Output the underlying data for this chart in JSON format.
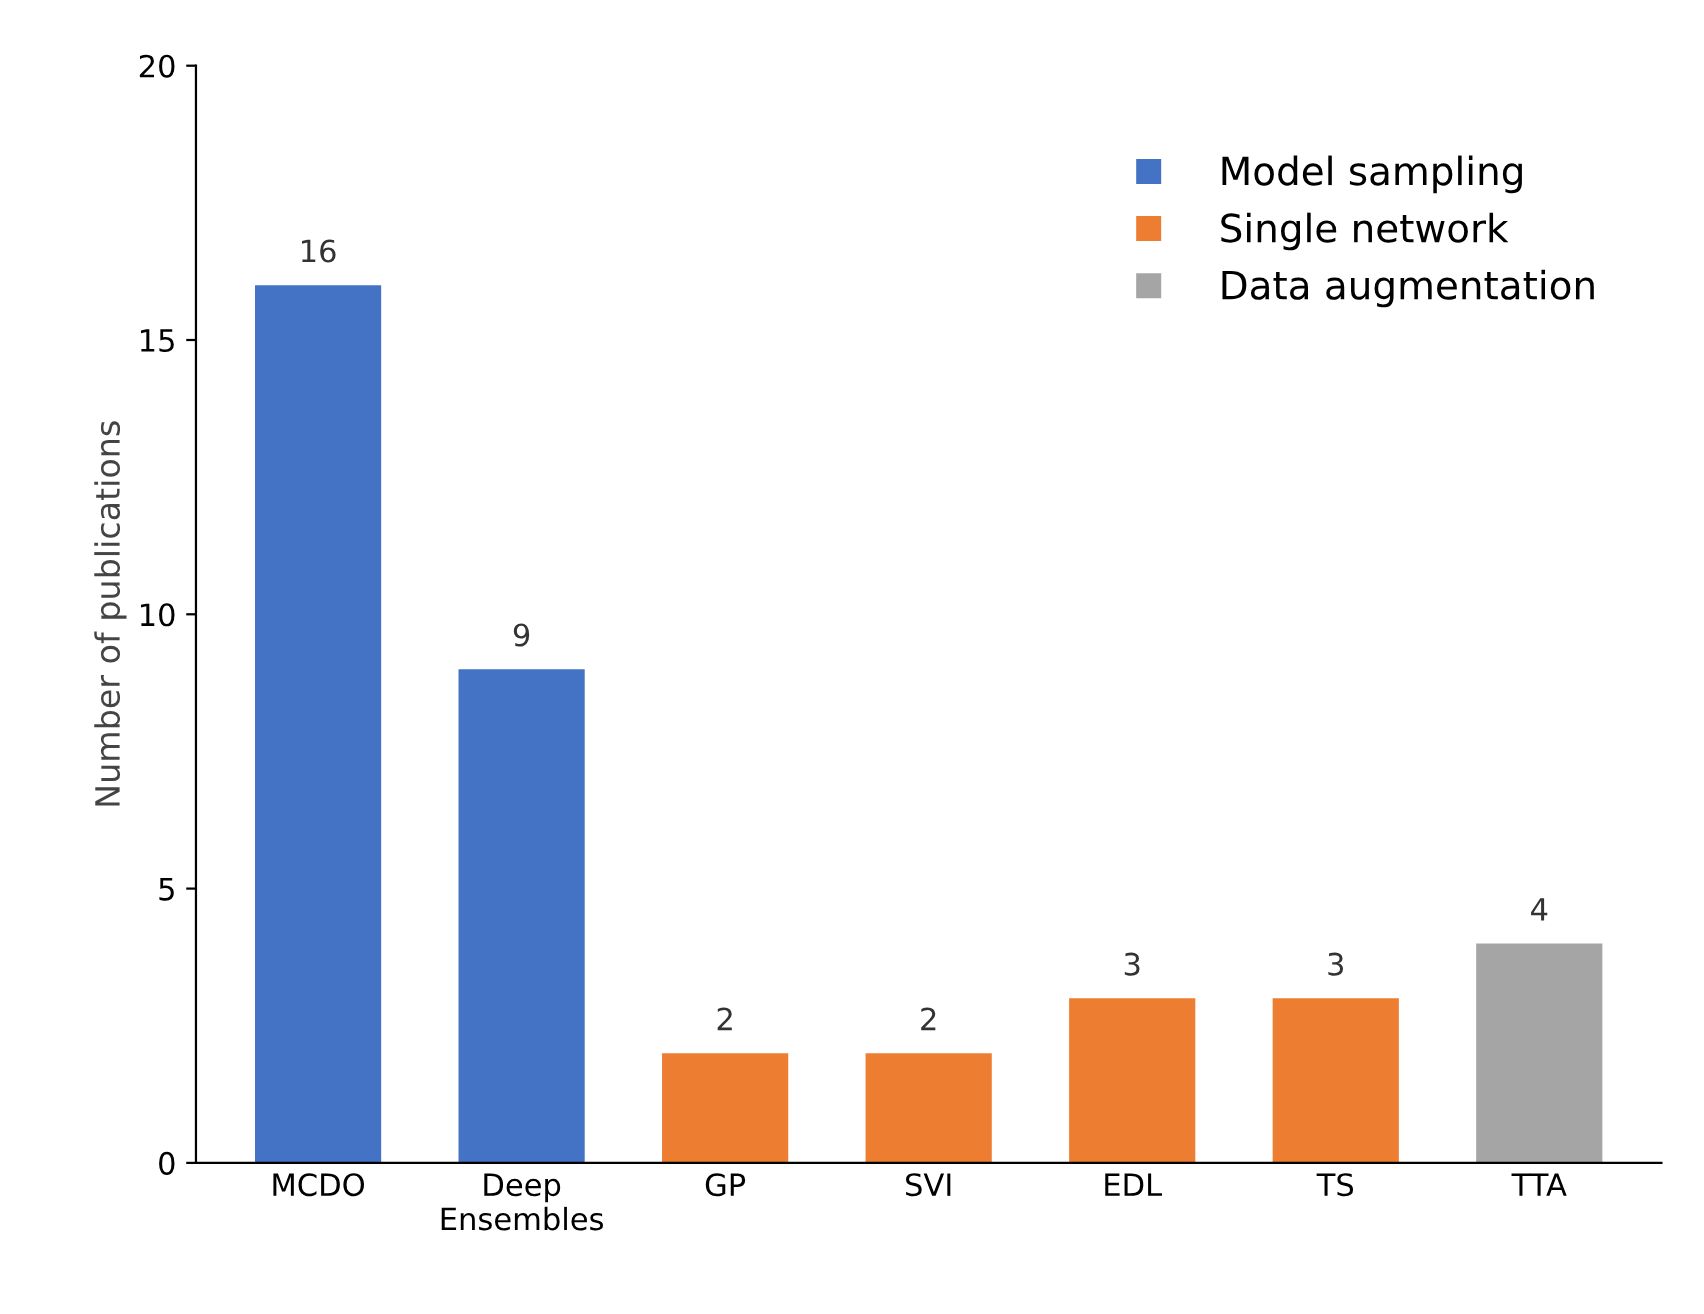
{
  "chart_data": {
    "type": "bar",
    "ylabel": "Number of publications",
    "categories": [
      "MCDO",
      "Deep\nEnsembles",
      "GP",
      "SVI",
      "EDL",
      "TS",
      "TTA"
    ],
    "series": [
      {
        "name": "Model sampling",
        "color": "#4472c4",
        "values": [
          16,
          9,
          null,
          null,
          null,
          null,
          null
        ]
      },
      {
        "name": "Single network",
        "color": "#ed7d31",
        "values": [
          null,
          null,
          2,
          2,
          3,
          3,
          null
        ]
      },
      {
        "name": "Data augmentation",
        "color": "#a5a5a5",
        "values": [
          null,
          null,
          null,
          null,
          null,
          null,
          4
        ]
      }
    ],
    "ylim": [
      0,
      20
    ],
    "yticks": [
      0,
      5,
      10,
      15,
      20
    ],
    "grid": false,
    "legend": "top right",
    "data_labels": true
  }
}
